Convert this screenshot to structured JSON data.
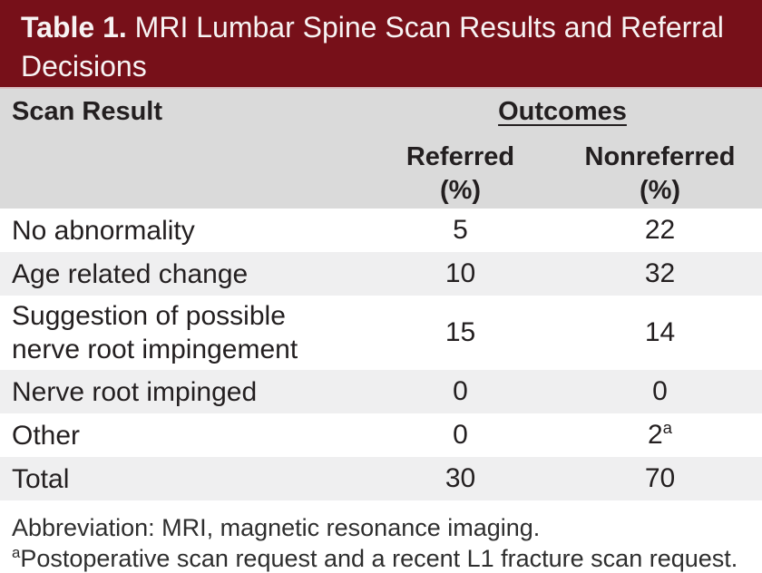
{
  "colors": {
    "header_bg": "#771019",
    "header_text": "#f7f3f3",
    "header_edge": "#d9bfc2",
    "band_bg": "#dadada",
    "stripe_bg": "#efeff0",
    "row_bg": "#ffffff",
    "text": "#231f20",
    "footnote_text": "#2e2e2e"
  },
  "header": {
    "label": "Table 1.",
    "title": " MRI Lumbar Spine Scan Results and Referral Decisions"
  },
  "columns": {
    "scan_result": "Scan Result",
    "outcomes_group": "Outcomes",
    "referred": "Referred",
    "referred_unit": "(%)",
    "nonreferred": "Nonreferred",
    "nonreferred_unit": "(%)"
  },
  "table": {
    "rows": [
      {
        "label": "No abnormality",
        "referred": 5,
        "nonreferred": 22
      },
      {
        "label": "Age related change",
        "referred": 10,
        "nonreferred": 32
      },
      {
        "label": "Suggestion of possible nerve root impingement",
        "referred": 15,
        "nonreferred": 14
      },
      {
        "label": "Nerve root impinged",
        "referred": 0,
        "nonreferred": 0
      },
      {
        "label": "Other",
        "referred": 0,
        "nonreferred": 2,
        "nonreferred_sup": "a"
      },
      {
        "label": "Total",
        "referred": 30,
        "nonreferred": 70
      }
    ]
  },
  "footnotes": {
    "abbreviation": "Abbreviation: MRI, magnetic resonance imaging.",
    "note_sup": "a",
    "note_text": "Postoperative scan request and a recent L1 fracture scan request."
  }
}
